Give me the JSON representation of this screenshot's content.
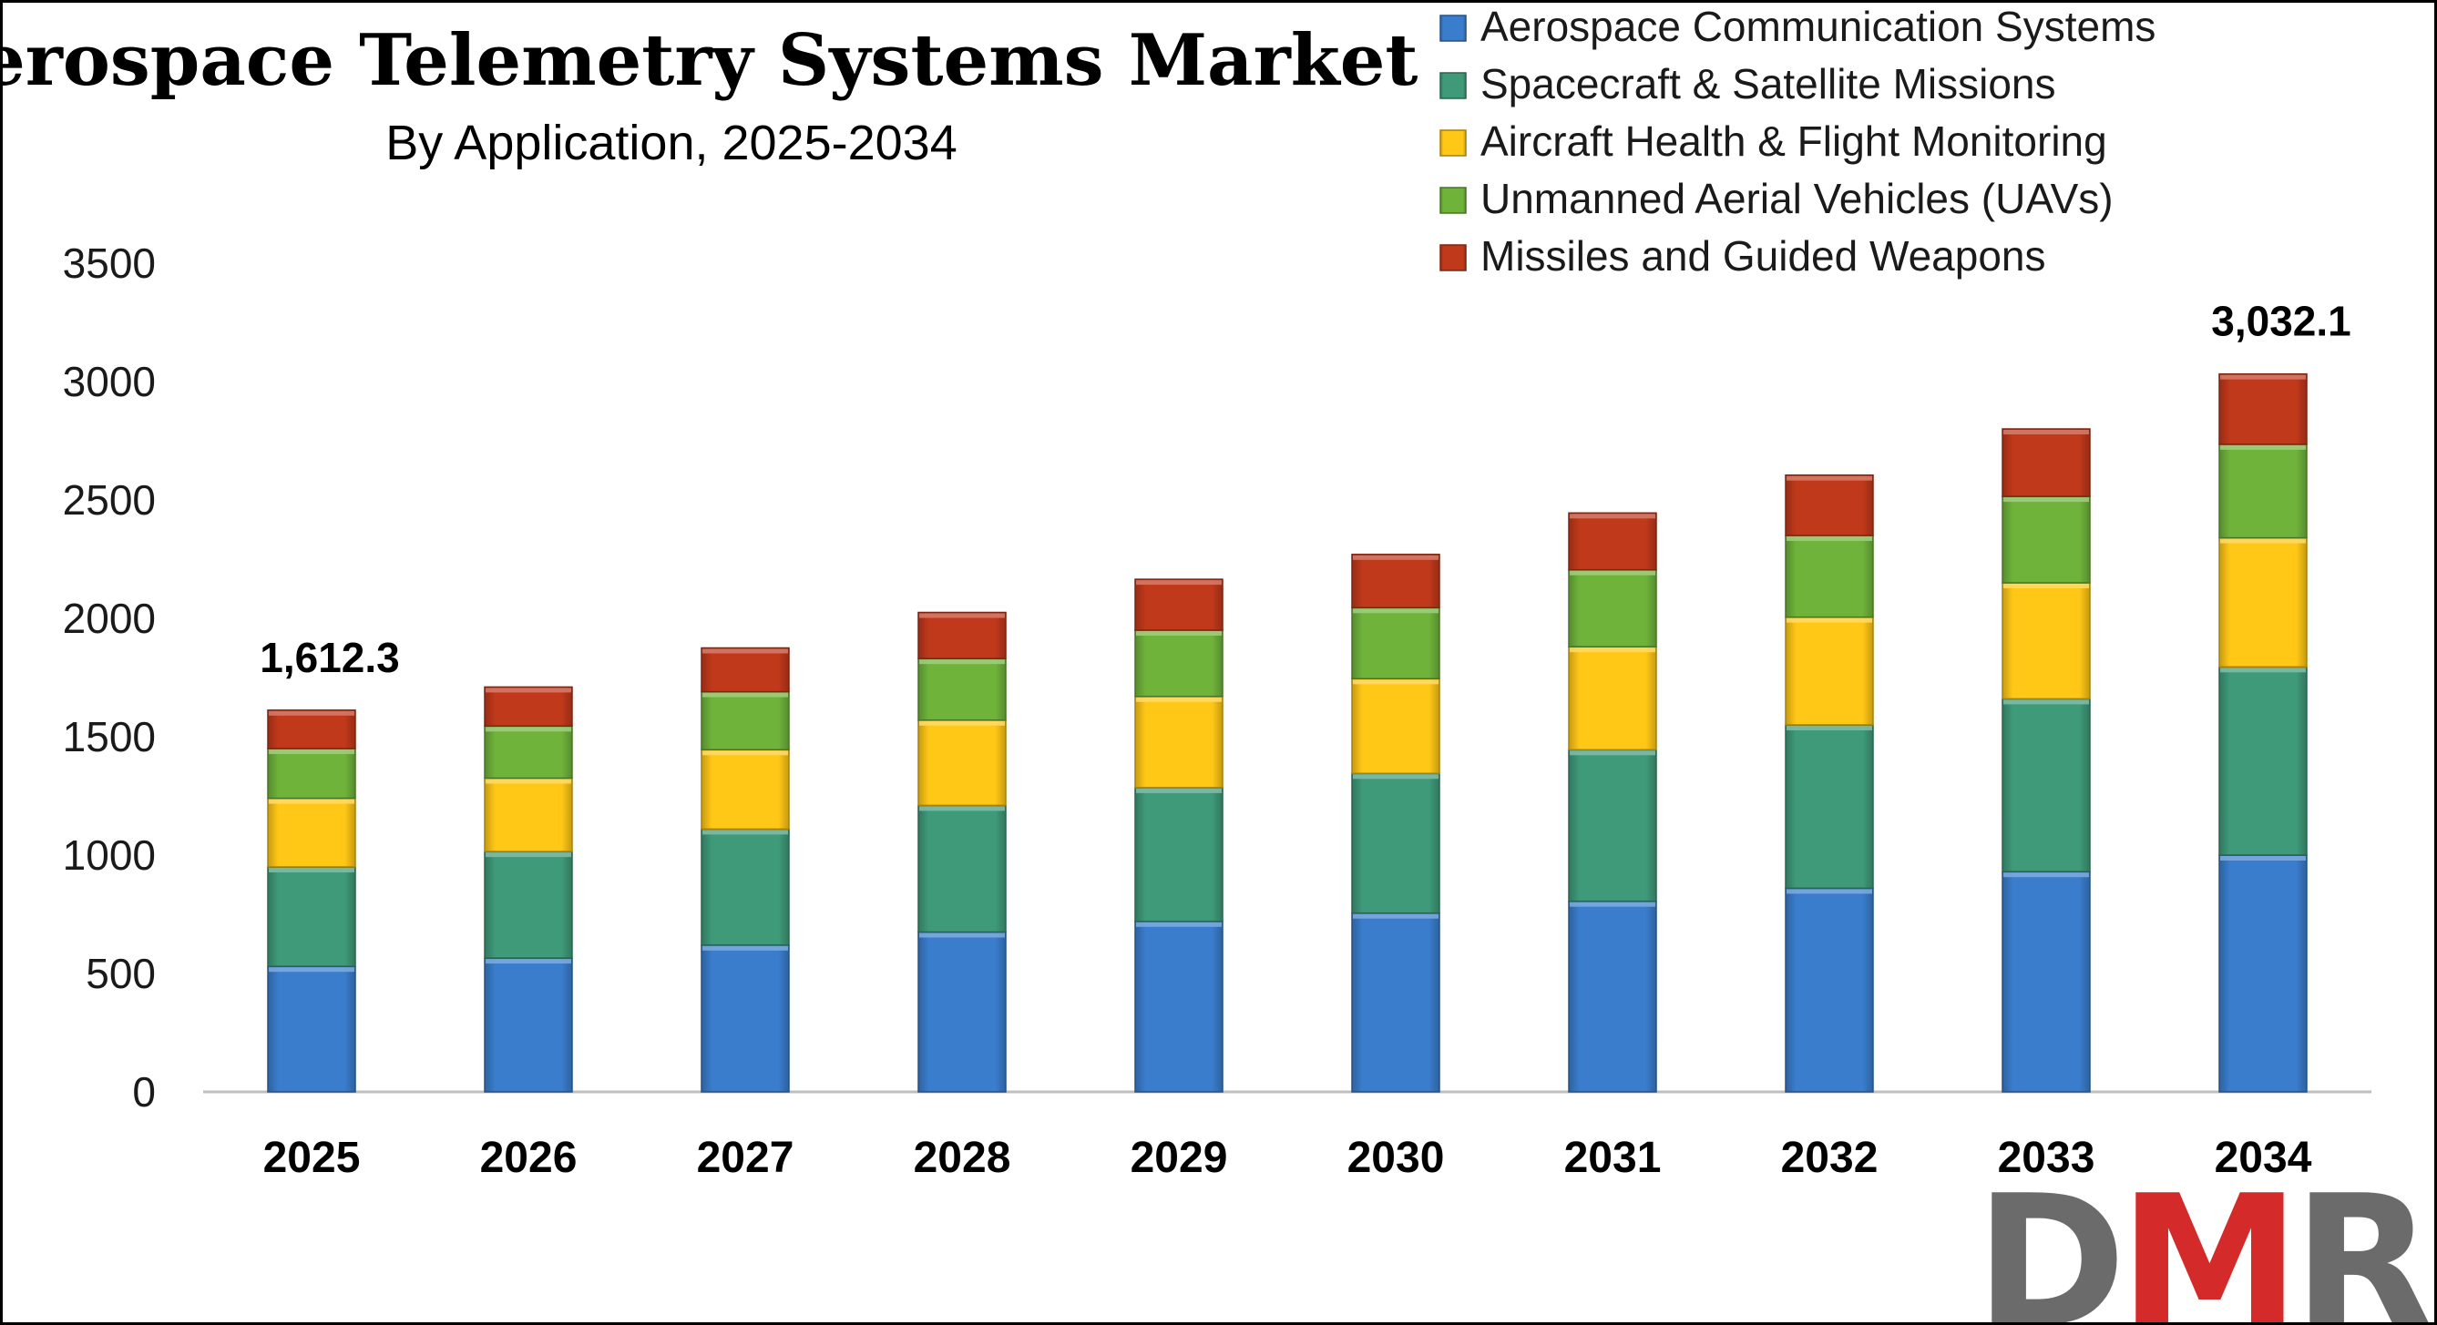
{
  "chart_data": {
    "type": "bar",
    "stacked": true,
    "title": "Aerospace Telemetry Systems Market",
    "subtitle": "By Application, 2025-2034",
    "xlabel": "",
    "ylabel": "",
    "ylim": [
      0,
      3500
    ],
    "yticks": [
      "0",
      "500",
      "1000",
      "1500",
      "2000",
      "2500",
      "3000",
      "3500"
    ],
    "grid": false,
    "legend_position": "top-right",
    "categories": [
      "2025",
      "2026",
      "2027",
      "2028",
      "2029",
      "2030",
      "2031",
      "2032",
      "2033",
      "2034"
    ],
    "series": [
      {
        "name": "Aerospace Communication Systems",
        "color": "#3A7DCC",
        "values": [
          530,
          565,
          620,
          675,
          720,
          755,
          805,
          860,
          930,
          1000
        ]
      },
      {
        "name": "Spacecraft & Satellite Missions",
        "color": "#3F9A7A",
        "values": [
          420,
          450,
          490,
          535,
          565,
          590,
          640,
          690,
          730,
          795
        ]
      },
      {
        "name": "Aircraft Health & Flight Monitoring",
        "color": "#FFC716",
        "values": [
          290,
          310,
          335,
          360,
          385,
          400,
          435,
          455,
          490,
          545
        ]
      },
      {
        "name": "Unmanned Aerial Vehicles (UAVs)",
        "color": "#6FB33B",
        "values": [
          210,
          220,
          245,
          260,
          280,
          300,
          325,
          345,
          365,
          395
        ]
      },
      {
        "name": "Missiles and Guided Weapons",
        "color": "#C0391B",
        "values": [
          162.3,
          165,
          185,
          195,
          215,
          225,
          240,
          255,
          285,
          297.1
        ]
      }
    ],
    "annotations": [
      {
        "category": "2025",
        "text": "1,612.3"
      },
      {
        "category": "2034",
        "text": "3,032.1"
      }
    ]
  },
  "brand": {
    "logo_text": "DMR",
    "logo_color_dark": "#6B6B6B",
    "logo_color_accent": "#D42A2A"
  }
}
